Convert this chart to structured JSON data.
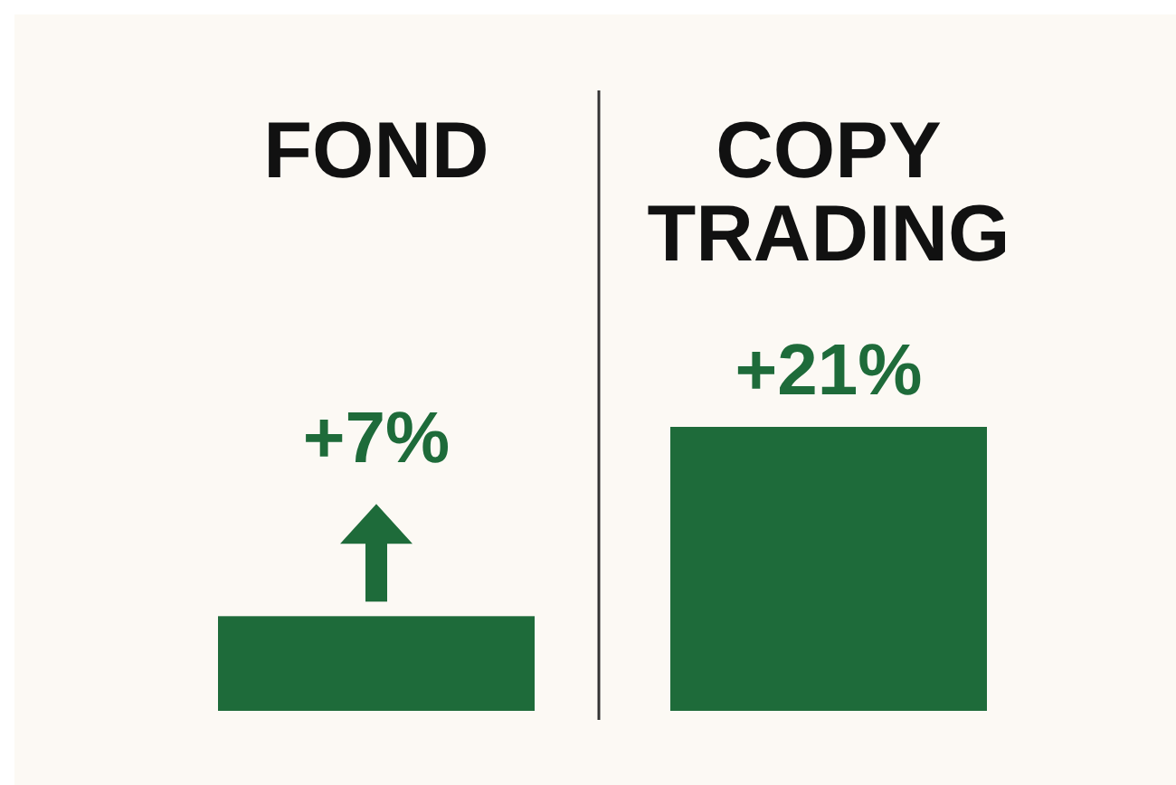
{
  "chart_data": {
    "type": "bar",
    "categories": [
      "FOND",
      "COPY TRADING"
    ],
    "values": [
      7,
      21
    ],
    "color": "#1e6b3a",
    "value_labels": [
      "+7%",
      "+21%"
    ]
  }
}
